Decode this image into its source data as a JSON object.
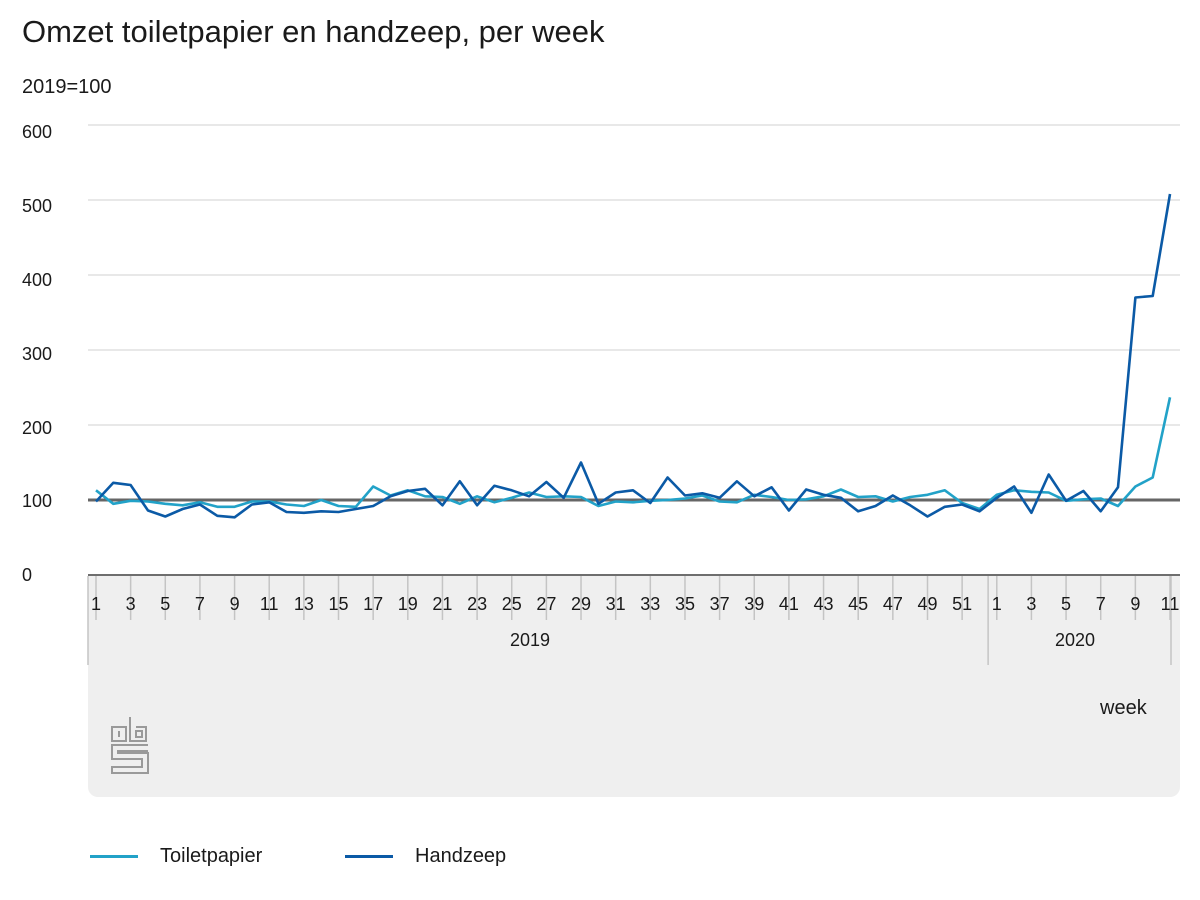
{
  "chart_data": {
    "type": "line",
    "title": "Omzet toiletpapier en handzeep, per week",
    "subtitle": "2019=100",
    "xlabel": "week",
    "ylabel": "2019=100",
    "ylim": [
      0,
      600
    ],
    "yticks": [
      0,
      100,
      200,
      300,
      400,
      500,
      600
    ],
    "grid": true,
    "legend_position": "bottom",
    "reference_line": 100,
    "x_groups": [
      {
        "label": "2019",
        "weeks": [
          1,
          2,
          3,
          4,
          5,
          6,
          7,
          8,
          9,
          10,
          11,
          12,
          13,
          14,
          15,
          16,
          17,
          18,
          19,
          20,
          21,
          22,
          23,
          24,
          25,
          26,
          27,
          28,
          29,
          30,
          31,
          32,
          33,
          34,
          35,
          36,
          37,
          38,
          39,
          40,
          41,
          42,
          43,
          44,
          45,
          46,
          47,
          48,
          49,
          50,
          51,
          52
        ]
      },
      {
        "label": "2020",
        "weeks": [
          1,
          2,
          3,
          4,
          5,
          6,
          7,
          8,
          9,
          10,
          11
        ]
      }
    ],
    "x_tick_labels_2019": [
      "1",
      "3",
      "5",
      "7",
      "9",
      "11",
      "13",
      "15",
      "17",
      "19",
      "21",
      "23",
      "25",
      "27",
      "29",
      "31",
      "33",
      "35",
      "37",
      "39",
      "41",
      "43",
      "45",
      "47",
      "49",
      "51"
    ],
    "x_tick_labels_2020": [
      "1",
      "3",
      "5",
      "7",
      "9",
      "11"
    ],
    "series": [
      {
        "name": "Toiletpapier",
        "color": "#22a2c8",
        "values": [
          113,
          95,
          99,
          98,
          95,
          93,
          97,
          91,
          91,
          98,
          98,
          94,
          92,
          100,
          92,
          91,
          118,
          106,
          113,
          105,
          104,
          95,
          105,
          97,
          103,
          110,
          104,
          105,
          104,
          92,
          98,
          97,
          99,
          100,
          102,
          106,
          98,
          97,
          107,
          104,
          100,
          101,
          105,
          114,
          104,
          105,
          98,
          104,
          107,
          113,
          96,
          88,
          107,
          113,
          111,
          110,
          99,
          101,
          102,
          92,
          118,
          130,
          237
        ]
      },
      {
        "name": "Handzeep",
        "color": "#0b5aa6",
        "values": [
          98,
          123,
          120,
          86,
          78,
          88,
          94,
          79,
          77,
          94,
          97,
          84,
          83,
          85,
          84,
          88,
          92,
          105,
          112,
          115,
          93,
          125,
          93,
          119,
          113,
          105,
          124,
          103,
          150,
          95,
          110,
          113,
          96,
          130,
          106,
          109,
          103,
          125,
          105,
          117,
          86,
          114,
          107,
          103,
          85,
          92,
          106,
          93,
          78,
          91,
          94,
          85,
          103,
          118,
          83,
          134,
          99,
          112,
          85,
          117,
          370,
          372,
          508
        ]
      }
    ]
  },
  "header": {
    "title": "Omzet toiletpapier en handzeep, per week",
    "unit": "2019=100"
  },
  "axis": {
    "y_ticks": [
      "600",
      "500",
      "400",
      "300",
      "200",
      "100",
      "0"
    ],
    "year_2019": "2019",
    "year_2020": "2020",
    "week_label": "week"
  },
  "legend": {
    "items": [
      {
        "label": "Toiletpapier",
        "color": "#22a2c8"
      },
      {
        "label": "Handzeep",
        "color": "#0b5aa6"
      }
    ]
  },
  "logo": {
    "name": "cbs-logo"
  }
}
